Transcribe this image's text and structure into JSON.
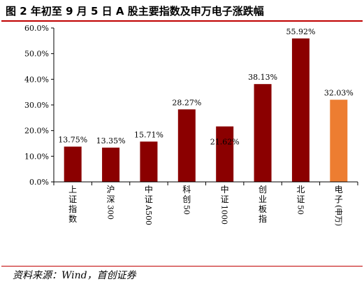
{
  "title": "图 2 年初至 9 月 5 日 A 股主要指数及申万电子涨跌幅",
  "source": "资料来源：Wind，首创证券",
  "colors": {
    "rule": "#c00000",
    "bar": "#8b0000",
    "highlight": "#ed7d31",
    "axis": "#000000"
  },
  "chart_data": {
    "type": "bar",
    "categories": [
      "上证指数",
      "沪深300",
      "中证A500",
      "科创50",
      "中证1000",
      "创业板指",
      "北证50",
      "电子(申万)"
    ],
    "category_lines": [
      [
        "上",
        "证",
        "指",
        "数"
      ],
      [
        "沪",
        "深",
        "300"
      ],
      [
        "中",
        "证",
        "A500"
      ],
      [
        "科",
        "创",
        "50"
      ],
      [
        "中",
        "证",
        "1000"
      ],
      [
        "创",
        "业",
        "板",
        "指"
      ],
      [
        "北",
        "证",
        "50"
      ],
      [
        "电",
        "子",
        "(申",
        "万)"
      ]
    ],
    "values": [
      13.75,
      13.35,
      15.71,
      28.27,
      21.62,
      38.13,
      55.92,
      32.03
    ],
    "value_labels": [
      "13.75%",
      "13.35%",
      "15.71%",
      "28.27%",
      "21.62%",
      "38.13%",
      "55.92%",
      "32.03%"
    ],
    "highlight_index": 7,
    "ylim": [
      0,
      60
    ],
    "yticks": [
      "0.0%",
      "10.0%",
      "20.0%",
      "30.0%",
      "40.0%",
      "50.0%",
      "60.0%"
    ],
    "grid": false,
    "legend": "none",
    "xlabel": "",
    "ylabel": ""
  }
}
